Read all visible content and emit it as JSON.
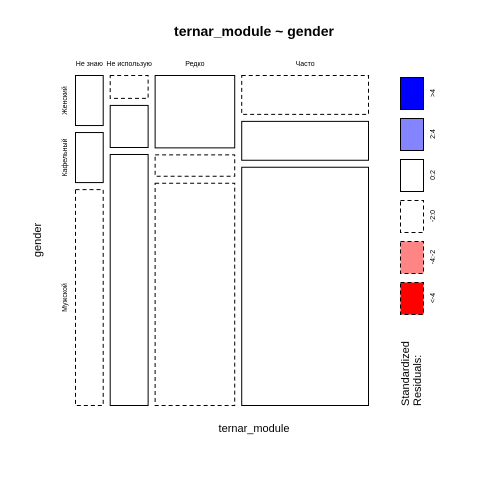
{
  "chart_data": {
    "type": "mosaic",
    "title": "ternar_module ~ gender",
    "xlabel": "ternar_module",
    "ylabel": "gender",
    "x_categories": [
      "Не знаю",
      "Не использую",
      "Редко",
      "Часто"
    ],
    "y_categories": [
      "Женский",
      "Кафельный",
      "Мужской"
    ],
    "column_proportions": [
      0.104,
      0.141,
      0.292,
      0.463
    ],
    "cells": [
      {
        "x": "Не знаю",
        "y": "Женский",
        "proportion": 0.16,
        "residual_class": "0:2"
      },
      {
        "x": "Не знаю",
        "y": "Кафельный",
        "proportion": 0.16,
        "residual_class": "0:2"
      },
      {
        "x": "Не знаю",
        "y": "Мужской",
        "proportion": 0.68,
        "residual_class": "-2:0"
      },
      {
        "x": "Не использую",
        "y": "Женский",
        "proportion": 0.075,
        "residual_class": "-2:0"
      },
      {
        "x": "Не использую",
        "y": "Кафельный",
        "proportion": 0.135,
        "residual_class": "0:2"
      },
      {
        "x": "Не использую",
        "y": "Мужской",
        "proportion": 0.79,
        "residual_class": "0:2"
      },
      {
        "x": "Редко",
        "y": "Женский",
        "proportion": 0.23,
        "residual_class": "0:2"
      },
      {
        "x": "Редко",
        "y": "Кафельный",
        "proportion": 0.07,
        "residual_class": "-2:0"
      },
      {
        "x": "Редко",
        "y": "Мужской",
        "proportion": 0.7,
        "residual_class": "-2:0"
      },
      {
        "x": "Часто",
        "y": "Женский",
        "proportion": 0.125,
        "residual_class": "-2:0"
      },
      {
        "x": "Часто",
        "y": "Кафельный",
        "proportion": 0.125,
        "residual_class": "0:2"
      },
      {
        "x": "Часто",
        "y": "Мужской",
        "proportion": 0.75,
        "residual_class": "0:2"
      }
    ],
    "legend": {
      "title_lines": [
        "Standardized",
        "Residuals:"
      ],
      "placement": "right",
      "items": [
        {
          "label": ">4",
          "color": "#0000ff",
          "dashed": false
        },
        {
          "label": "2:4",
          "color": "#8484ff",
          "dashed": false
        },
        {
          "label": "0:2",
          "color": "#ffffff",
          "dashed": false
        },
        {
          "label": "-2:0",
          "color": "#ffffff",
          "dashed": true
        },
        {
          "label": "-4:-2",
          "color": "#ff8484",
          "dashed": true
        },
        {
          "label": "<-4",
          "color": "#ff0000",
          "dashed": true
        }
      ]
    }
  }
}
